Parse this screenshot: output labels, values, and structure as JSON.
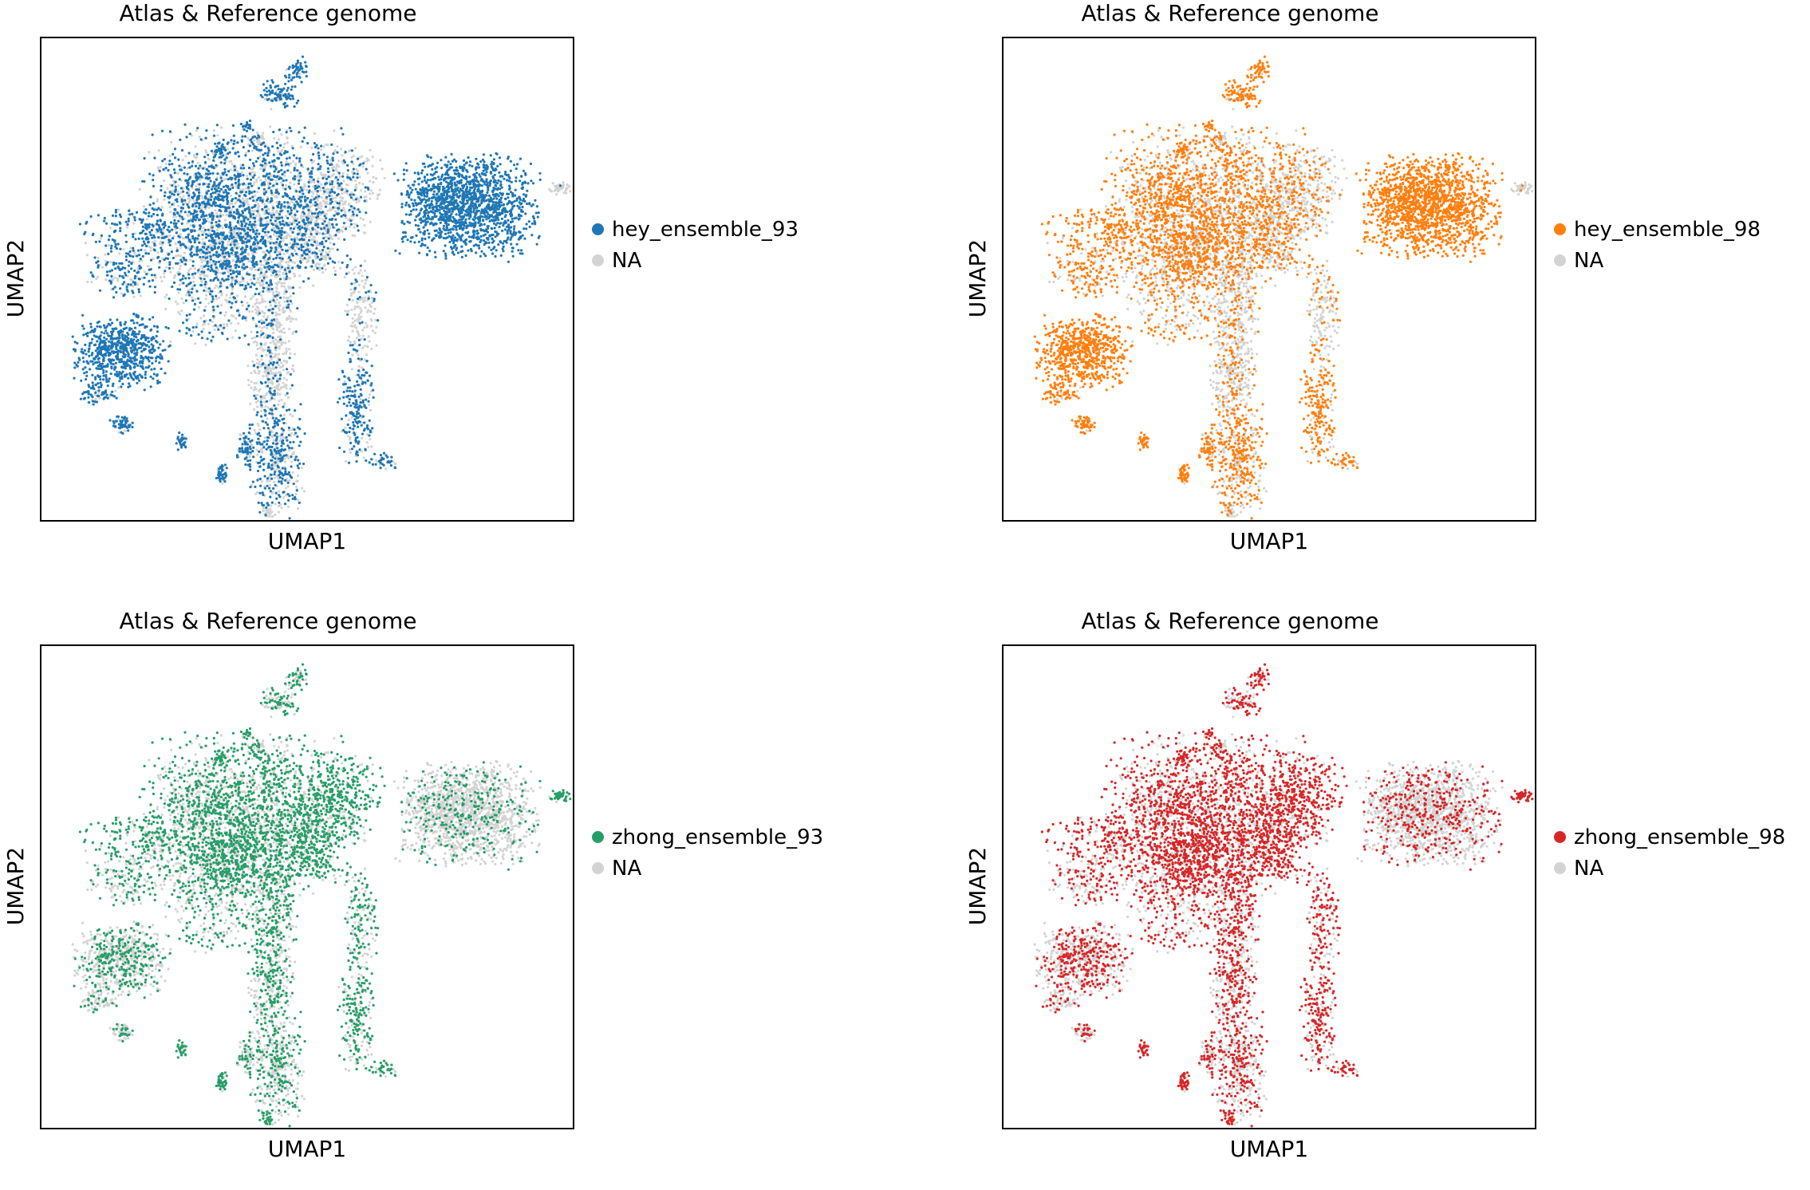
{
  "chart_data": [
    {
      "type": "scatter",
      "title": "Atlas & Reference genome",
      "xlabel": "UMAP1",
      "ylabel": "UMAP2",
      "grid": false,
      "legend_placement": "right",
      "ticks": "none",
      "na_color": "#d3d3d3",
      "series": [
        {
          "name": "hey_ensemble_93",
          "color": "#1f77b4",
          "highlight_profile": "hey"
        },
        {
          "name": "NA",
          "color": "#d3d3d3"
        }
      ]
    },
    {
      "type": "scatter",
      "title": "Atlas & Reference genome",
      "xlabel": "UMAP1",
      "ylabel": "UMAP2",
      "grid": false,
      "legend_placement": "right",
      "ticks": "none",
      "na_color": "#d3d3d3",
      "series": [
        {
          "name": "hey_ensemble_98",
          "color": "#ff7f0e",
          "highlight_profile": "hey"
        },
        {
          "name": "NA",
          "color": "#d3d3d3"
        }
      ]
    },
    {
      "type": "scatter",
      "title": "Atlas & Reference genome",
      "xlabel": "UMAP1",
      "ylabel": "UMAP2",
      "grid": false,
      "legend_placement": "right",
      "ticks": "none",
      "na_color": "#d3d3d3",
      "series": [
        {
          "name": "zhong_ensemble_93",
          "color": "#279e68",
          "highlight_profile": "zhong"
        },
        {
          "name": "NA",
          "color": "#d3d3d3"
        }
      ]
    },
    {
      "type": "scatter",
      "title": "Atlas & Reference genome",
      "xlabel": "UMAP1",
      "ylabel": "UMAP2",
      "grid": false,
      "legend_placement": "right",
      "ticks": "none",
      "na_color": "#d3d3d3",
      "series": [
        {
          "name": "zhong_ensemble_98",
          "color": "#d62728",
          "highlight_profile": "zhong"
        },
        {
          "name": "NA",
          "color": "#d3d3d3"
        }
      ]
    }
  ]
}
